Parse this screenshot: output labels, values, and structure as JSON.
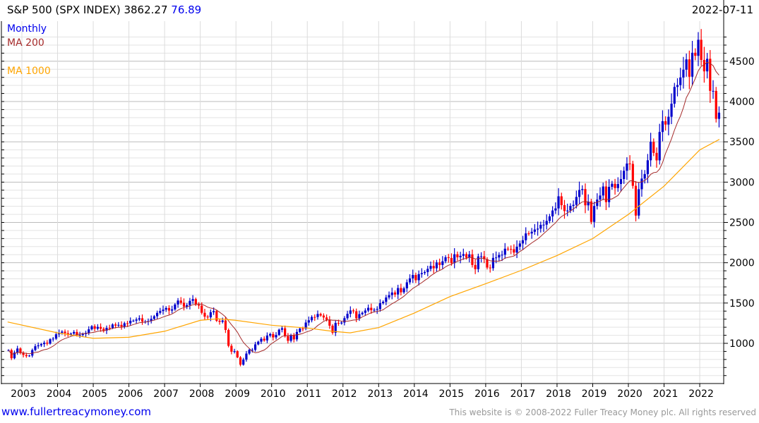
{
  "header": {
    "title": "S&P 500 (SPX INDEX) 3862.27",
    "change": "76.89",
    "date": "2022-07-11"
  },
  "legend": {
    "period": "Monthly",
    "ma200": "MA 200",
    "ma1000": "MA 1000"
  },
  "footer": {
    "site": "www.fullertreacymoney.com",
    "copyright": "This website is © 2008-2022 Fuller Treacy Money plc. All rights reserved"
  },
  "colors": {
    "up": "#0000cc",
    "down": "#ff0000",
    "ma200": "#a52a2a",
    "ma1000": "#ffa500",
    "grid_major": "#bbbbbb",
    "grid_minor": "#e3e3e3",
    "change": "#0000ee"
  },
  "chart_data": {
    "type": "candlestick",
    "title": "S&P 500 (SPX INDEX)",
    "start": "2002-08",
    "interval": "month",
    "closes": [
      916,
      815,
      886,
      936,
      880,
      856,
      841,
      848,
      917,
      964,
      975,
      990,
      1008,
      996,
      1051,
      1058,
      1112,
      1131,
      1145,
      1126,
      1107,
      1121,
      1141,
      1102,
      1104,
      1115,
      1130,
      1174,
      1212,
      1181,
      1204,
      1181,
      1157,
      1192,
      1191,
      1234,
      1220,
      1229,
      1207,
      1249,
      1248,
      1280,
      1281,
      1295,
      1311,
      1270,
      1270,
      1277,
      1304,
      1336,
      1378,
      1401,
      1418,
      1438,
      1407,
      1421,
      1482,
      1531,
      1503,
      1455,
      1474,
      1527,
      1549,
      1481,
      1468,
      1379,
      1331,
      1323,
      1386,
      1400,
      1280,
      1267,
      1283,
      1166,
      969,
      896,
      903,
      826,
      735,
      798,
      873,
      919,
      919,
      987,
      1021,
      1057,
      1036,
      1096,
      1115,
      1074,
      1104,
      1169,
      1187,
      1089,
      1031,
      1102,
      1049,
      1141,
      1183,
      1181,
      1258,
      1286,
      1327,
      1326,
      1364,
      1345,
      1321,
      1292,
      1219,
      1131,
      1253,
      1247,
      1258,
      1312,
      1366,
      1408,
      1398,
      1310,
      1362,
      1379,
      1407,
      1441,
      1412,
      1416,
      1426,
      1498,
      1515,
      1569,
      1598,
      1631,
      1606,
      1686,
      1633,
      1682,
      1757,
      1806,
      1848,
      1783,
      1859,
      1872,
      1884,
      1924,
      1960,
      1931,
      2003,
      1972,
      2018,
      2068,
      2059,
      1995,
      2105,
      2068,
      2086,
      2107,
      2063,
      2104,
      1972,
      1920,
      2079,
      2080,
      2044,
      1940,
      1932,
      2060,
      2065,
      2097,
      2099,
      2174,
      2171,
      2168,
      2126,
      2199,
      2239,
      2279,
      2364,
      2363,
      2384,
      2412,
      2423,
      2470,
      2472,
      2519,
      2575,
      2648,
      2674,
      2824,
      2714,
      2641,
      2648,
      2705,
      2718,
      2816,
      2902,
      2914,
      2712,
      2760,
      2507,
      2704,
      2784,
      2834,
      2946,
      2752,
      2942,
      2980,
      2926,
      2977,
      3038,
      3141,
      3231,
      3226,
      2954,
      2585,
      2912,
      3044,
      3100,
      3271,
      3500,
      3363,
      3270,
      3622,
      3756,
      3714,
      3811,
      3973,
      4181,
      4204,
      4298,
      4395,
      4523,
      4308,
      4605,
      4567,
      4766,
      4516,
      4374,
      4530,
      4132,
      4132,
      3785,
      3862
    ],
    "first_open": 912,
    "ma1000": [
      [
        2002.6,
        1265
      ],
      [
        2004,
        1130
      ],
      [
        2005,
        1062
      ],
      [
        2006,
        1075
      ],
      [
        2007,
        1150
      ],
      [
        2008,
        1285
      ],
      [
        2008.5,
        1305
      ],
      [
        2009,
        1285
      ],
      [
        2010,
        1225
      ],
      [
        2011,
        1190
      ],
      [
        2011.7,
        1150
      ],
      [
        2012.2,
        1130
      ],
      [
        2013,
        1195
      ],
      [
        2014,
        1375
      ],
      [
        2015,
        1580
      ],
      [
        2016,
        1740
      ],
      [
        2017,
        1905
      ],
      [
        2018,
        2090
      ],
      [
        2019,
        2300
      ],
      [
        2020,
        2600
      ],
      [
        2021,
        2950
      ],
      [
        2022,
        3400
      ],
      [
        2022.55,
        3530
      ]
    ],
    "ylim": [
      550,
      4900
    ],
    "yticks": [
      1000,
      1500,
      2000,
      2500,
      3000,
      3500,
      4000,
      4500
    ],
    "xticks": [
      2003,
      2004,
      2005,
      2006,
      2007,
      2008,
      2009,
      2010,
      2011,
      2012,
      2013,
      2014,
      2015,
      2016,
      2017,
      2018,
      2019,
      2020,
      2021,
      2022
    ],
    "xlim": [
      2002.45,
      2022.68
    ]
  }
}
